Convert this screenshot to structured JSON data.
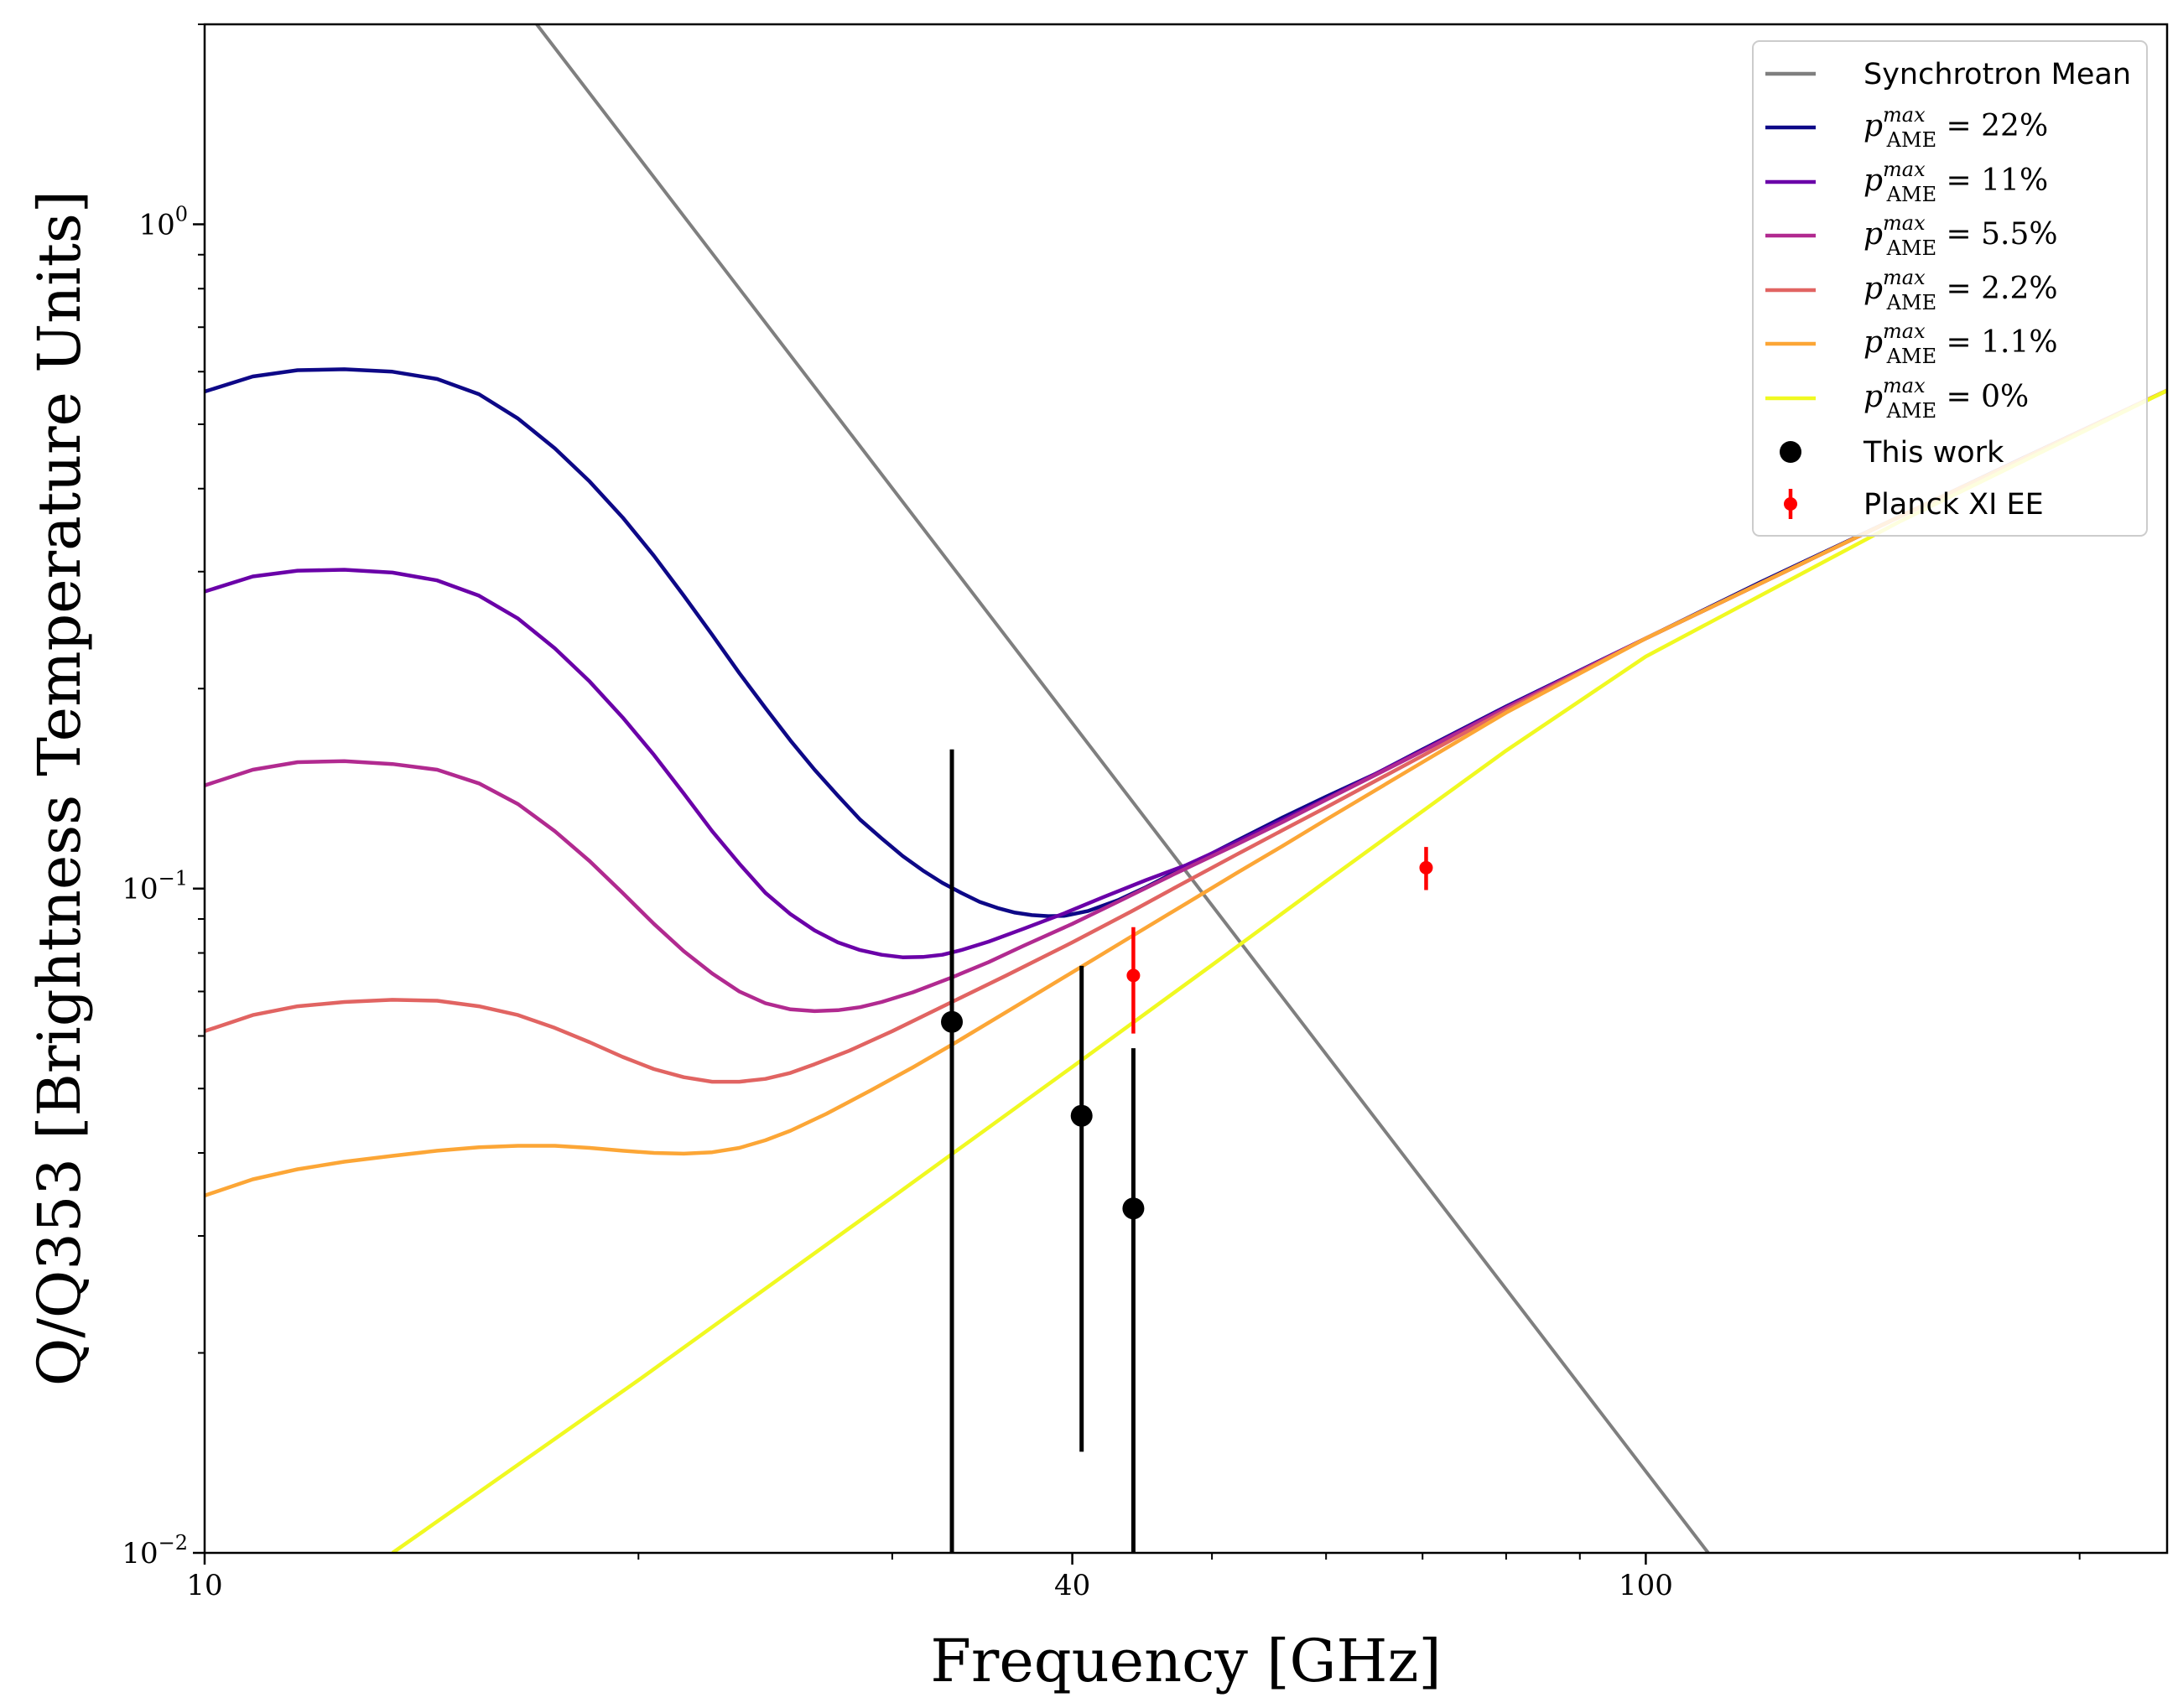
{
  "chart_data": {
    "type": "line",
    "xlabel": "Frequency [GHz]",
    "ylabel": "Q/Q353 [Brightness Temperature Units]",
    "x_scale": "log",
    "y_scale": "log",
    "xlim": [
      10,
      230
    ],
    "ylim": [
      0.01,
      2.0
    ],
    "x_ticks": [
      {
        "value": 10,
        "label": "10"
      },
      {
        "value": 40,
        "label": "40"
      },
      {
        "value": 100,
        "label": "100"
      }
    ],
    "y_ticks": [
      {
        "value": 1,
        "label": "10",
        "exp": "0"
      },
      {
        "value": 0.1,
        "label": "10",
        "exp": "−1"
      },
      {
        "value": 0.01,
        "label": "10",
        "exp": "−2"
      }
    ],
    "legend_placement": "top-right",
    "grid": false,
    "series": [
      {
        "name": "Synchrotron Mean",
        "color": "#7f7f7f",
        "kind": "line",
        "points": [
          [
            17.0,
            2.0
          ],
          [
            110.5,
            0.01
          ]
        ]
      },
      {
        "name": "p_AME^max = 22%",
        "legend_main": "p",
        "legend_sup": "max",
        "legend_sub": "AME",
        "legend_rhs": " = 22%",
        "color": "#0d0887",
        "kind": "line",
        "points": [
          [
            10,
            0.56
          ],
          [
            10.8,
            0.59
          ],
          [
            11.6,
            0.603
          ],
          [
            12.5,
            0.605
          ],
          [
            13.5,
            0.6
          ],
          [
            14.5,
            0.585
          ],
          [
            15.5,
            0.555
          ],
          [
            16.5,
            0.51
          ],
          [
            17.5,
            0.46
          ],
          [
            18.5,
            0.41
          ],
          [
            19.5,
            0.362
          ],
          [
            20.5,
            0.317
          ],
          [
            21.5,
            0.276
          ],
          [
            22.5,
            0.241
          ],
          [
            23.5,
            0.211
          ],
          [
            24.5,
            0.187
          ],
          [
            25.5,
            0.167
          ],
          [
            26.5,
            0.151
          ],
          [
            27.5,
            0.138
          ],
          [
            28.5,
            0.127
          ],
          [
            29.5,
            0.119
          ],
          [
            30.5,
            0.112
          ],
          [
            31.5,
            0.1065
          ],
          [
            32.5,
            0.102
          ],
          [
            33.5,
            0.0985
          ],
          [
            34.5,
            0.0955
          ],
          [
            35.5,
            0.0935
          ],
          [
            36.5,
            0.092
          ],
          [
            37.5,
            0.0912
          ],
          [
            38.5,
            0.0909
          ],
          [
            39.5,
            0.091
          ],
          [
            41.0,
            0.0925
          ],
          [
            43.0,
            0.096
          ],
          [
            45.0,
            0.1005
          ],
          [
            48.0,
            0.108
          ],
          [
            52.0,
            0.118
          ],
          [
            56.0,
            0.128
          ],
          [
            60.0,
            0.1375
          ],
          [
            65.0,
            0.149
          ],
          [
            70.0,
            0.162
          ],
          [
            80.0,
            0.188
          ],
          [
            90.0,
            0.213
          ],
          [
            100.0,
            0.238
          ],
          [
            120.0,
            0.289
          ],
          [
            150.0,
            0.363
          ],
          [
            180.0,
            0.438
          ],
          [
            230.0,
            0.562
          ]
        ]
      },
      {
        "name": "p_AME^max = 11%",
        "legend_main": "p",
        "legend_sup": "max",
        "legend_sub": "AME",
        "legend_rhs": " = 11%",
        "color": "#6a00a8",
        "kind": "line",
        "points": [
          [
            10,
            0.28
          ],
          [
            10.8,
            0.295
          ],
          [
            11.6,
            0.301
          ],
          [
            12.5,
            0.302
          ],
          [
            13.5,
            0.299
          ],
          [
            14.5,
            0.291
          ],
          [
            15.5,
            0.276
          ],
          [
            16.5,
            0.255
          ],
          [
            17.5,
            0.23
          ],
          [
            18.5,
            0.205
          ],
          [
            19.5,
            0.181
          ],
          [
            20.5,
            0.159
          ],
          [
            21.5,
            0.139
          ],
          [
            22.5,
            0.122
          ],
          [
            23.5,
            0.109
          ],
          [
            24.5,
            0.0985
          ],
          [
            25.5,
            0.0915
          ],
          [
            26.5,
            0.0865
          ],
          [
            27.5,
            0.083
          ],
          [
            28.5,
            0.0808
          ],
          [
            29.5,
            0.0795
          ],
          [
            30.5,
            0.0788
          ],
          [
            31.5,
            0.0789
          ],
          [
            32.5,
            0.0795
          ],
          [
            33.5,
            0.0808
          ],
          [
            35.0,
            0.0832
          ],
          [
            37.0,
            0.087
          ],
          [
            39.5,
            0.0918
          ],
          [
            42.0,
            0.097
          ],
          [
            45.0,
            0.103
          ],
          [
            48.0,
            0.1085
          ],
          [
            52.0,
            0.1175
          ],
          [
            56.0,
            0.127
          ],
          [
            60.0,
            0.1365
          ],
          [
            70.0,
            0.1615
          ],
          [
            80.0,
            0.1875
          ],
          [
            100.0,
            0.238
          ],
          [
            150.0,
            0.363
          ],
          [
            230.0,
            0.562
          ]
        ]
      },
      {
        "name": "p_AME^max = 5.5%",
        "legend_main": "p",
        "legend_sup": "max",
        "legend_sub": "AME",
        "legend_rhs": " = 5.5%",
        "color": "#b12a90",
        "kind": "line",
        "points": [
          [
            10,
            0.143
          ],
          [
            10.8,
            0.151
          ],
          [
            11.6,
            0.155
          ],
          [
            12.5,
            0.1555
          ],
          [
            13.5,
            0.154
          ],
          [
            14.5,
            0.151
          ],
          [
            15.5,
            0.144
          ],
          [
            16.5,
            0.134
          ],
          [
            17.5,
            0.122
          ],
          [
            18.5,
            0.11
          ],
          [
            19.5,
            0.0985
          ],
          [
            20.5,
            0.0885
          ],
          [
            21.5,
            0.0805
          ],
          [
            22.5,
            0.0745
          ],
          [
            23.5,
            0.07
          ],
          [
            24.5,
            0.0672
          ],
          [
            25.5,
            0.0658
          ],
          [
            26.5,
            0.0654
          ],
          [
            27.5,
            0.0656
          ],
          [
            28.5,
            0.0663
          ],
          [
            29.5,
            0.0675
          ],
          [
            31.0,
            0.0698
          ],
          [
            33.0,
            0.0735
          ],
          [
            35.0,
            0.0775
          ],
          [
            37.0,
            0.082
          ],
          [
            40.0,
            0.0885
          ],
          [
            43.0,
            0.0955
          ],
          [
            47.0,
            0.105
          ],
          [
            52.0,
            0.1165
          ],
          [
            56.0,
            0.126
          ],
          [
            60.0,
            0.136
          ],
          [
            70.0,
            0.161
          ],
          [
            80.0,
            0.187
          ],
          [
            100.0,
            0.238
          ],
          [
            150.0,
            0.363
          ],
          [
            230.0,
            0.562
          ]
        ]
      },
      {
        "name": "p_AME^max = 2.2%",
        "legend_main": "p",
        "legend_sup": "max",
        "legend_sub": "AME",
        "legend_rhs": " = 2.2%",
        "color": "#e16462",
        "kind": "line",
        "points": [
          [
            10,
            0.061
          ],
          [
            10.8,
            0.0645
          ],
          [
            11.6,
            0.0665
          ],
          [
            12.5,
            0.0675
          ],
          [
            13.5,
            0.068
          ],
          [
            14.5,
            0.0678
          ],
          [
            15.5,
            0.0665
          ],
          [
            16.5,
            0.0645
          ],
          [
            17.5,
            0.0617
          ],
          [
            18.5,
            0.0587
          ],
          [
            19.5,
            0.0558
          ],
          [
            20.5,
            0.0535
          ],
          [
            21.5,
            0.052
          ],
          [
            22.5,
            0.0512
          ],
          [
            23.5,
            0.0512
          ],
          [
            24.5,
            0.0517
          ],
          [
            25.5,
            0.0528
          ],
          [
            26.5,
            0.0544
          ],
          [
            28.0,
            0.057
          ],
          [
            30.0,
            0.061
          ],
          [
            33.0,
            0.0675
          ],
          [
            36.0,
            0.074
          ],
          [
            40.0,
            0.083
          ],
          [
            44.0,
            0.0925
          ],
          [
            48.0,
            0.1025
          ],
          [
            52.0,
            0.1125
          ],
          [
            56.0,
            0.1225
          ],
          [
            60.0,
            0.1325
          ],
          [
            70.0,
            0.1585
          ],
          [
            80.0,
            0.1855
          ],
          [
            100.0,
            0.238
          ],
          [
            150.0,
            0.363
          ],
          [
            230.0,
            0.562
          ]
        ]
      },
      {
        "name": "p_AME^max = 1.1%",
        "legend_main": "p",
        "legend_sup": "max",
        "legend_sub": "AME",
        "legend_rhs": " = 1.1%",
        "color": "#fca636",
        "kind": "line",
        "points": [
          [
            10,
            0.0345
          ],
          [
            10.8,
            0.0365
          ],
          [
            11.6,
            0.0378
          ],
          [
            12.5,
            0.0388
          ],
          [
            13.5,
            0.0396
          ],
          [
            14.5,
            0.0403
          ],
          [
            15.5,
            0.0408
          ],
          [
            16.5,
            0.041
          ],
          [
            17.5,
            0.041
          ],
          [
            18.5,
            0.0407
          ],
          [
            19.5,
            0.0403
          ],
          [
            20.5,
            0.04
          ],
          [
            21.5,
            0.0399
          ],
          [
            22.5,
            0.0401
          ],
          [
            23.5,
            0.0407
          ],
          [
            24.5,
            0.0418
          ],
          [
            25.5,
            0.0432
          ],
          [
            27.0,
            0.0458
          ],
          [
            29.0,
            0.0497
          ],
          [
            31.0,
            0.0538
          ],
          [
            33.0,
            0.0582
          ],
          [
            36.0,
            0.0652
          ],
          [
            40.0,
            0.0748
          ],
          [
            44.0,
            0.0848
          ],
          [
            48.0,
            0.095
          ],
          [
            52.0,
            0.1055
          ],
          [
            56.0,
            0.116
          ],
          [
            60.0,
            0.127
          ],
          [
            70.0,
            0.155
          ],
          [
            80.0,
            0.184
          ],
          [
            100.0,
            0.238
          ],
          [
            150.0,
            0.363
          ],
          [
            230.0,
            0.562
          ]
        ]
      },
      {
        "name": "p_AME^max = 0%",
        "legend_main": "p",
        "legend_sup": "max",
        "legend_sub": "AME",
        "legend_rhs": " = 0%",
        "color": "#f0f921",
        "kind": "line",
        "points": [
          [
            13.5,
            0.01
          ],
          [
            20.0,
            0.0182
          ],
          [
            30.0,
            0.0343
          ],
          [
            40.0,
            0.0539
          ],
          [
            50.0,
            0.0767
          ],
          [
            60.0,
            0.1026
          ],
          [
            80.0,
            0.1613
          ],
          [
            100.0,
            0.2235
          ],
          [
            150.0,
            0.3568
          ],
          [
            230.0,
            0.562
          ]
        ]
      },
      {
        "name": "This work",
        "color": "#000000",
        "kind": "errorbar",
        "points": [
          {
            "x": 33.0,
            "y": 0.063,
            "ylo": 0.01,
            "yhi": 0.162
          },
          {
            "x": 40.6,
            "y": 0.0455,
            "ylo": 0.0142,
            "yhi": 0.0765
          },
          {
            "x": 44.1,
            "y": 0.033,
            "ylo": 0.01,
            "yhi": 0.0575
          }
        ]
      },
      {
        "name": "Planck XI EE",
        "color": "#ff0000",
        "kind": "errorbar",
        "points": [
          {
            "x": 44.1,
            "y": 0.074,
            "ylo": 0.0605,
            "yhi": 0.0875
          },
          {
            "x": 70.4,
            "y": 0.1075,
            "ylo": 0.0995,
            "yhi": 0.1155
          }
        ]
      }
    ]
  }
}
